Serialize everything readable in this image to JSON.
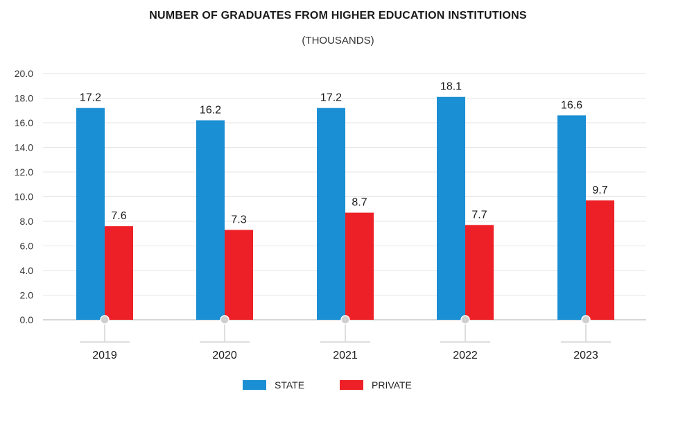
{
  "chart_data": {
    "type": "bar",
    "title": "NUMBER OF GRADUATES FROM HIGHER EDUCATION INSTITUTIONS",
    "subtitle": "(THOUSANDS)",
    "categories": [
      "2019",
      "2020",
      "2021",
      "2022",
      "2023"
    ],
    "series": [
      {
        "name": "STATE",
        "color": "#1a8fd3",
        "values": [
          17.2,
          16.2,
          17.2,
          18.1,
          16.6
        ]
      },
      {
        "name": "PRIVATE",
        "color": "#ee2027",
        "values": [
          7.6,
          7.3,
          8.7,
          7.7,
          9.7
        ]
      }
    ],
    "data_labels": {
      "STATE": [
        "17.2",
        "16.2",
        "17.2",
        "18.1",
        "16.6"
      ],
      "PRIVATE": [
        "7.6",
        "7.3",
        "8.7",
        "7.7",
        "9.7"
      ]
    },
    "ylim": [
      0,
      20
    ],
    "yticks": [
      "0.0",
      "2.0",
      "4.0",
      "6.0",
      "8.0",
      "10.0",
      "12.0",
      "14.0",
      "16.0",
      "18.0",
      "20.0"
    ],
    "xlabel": "",
    "ylabel": "",
    "grid": true,
    "legend_position": "bottom-center"
  }
}
